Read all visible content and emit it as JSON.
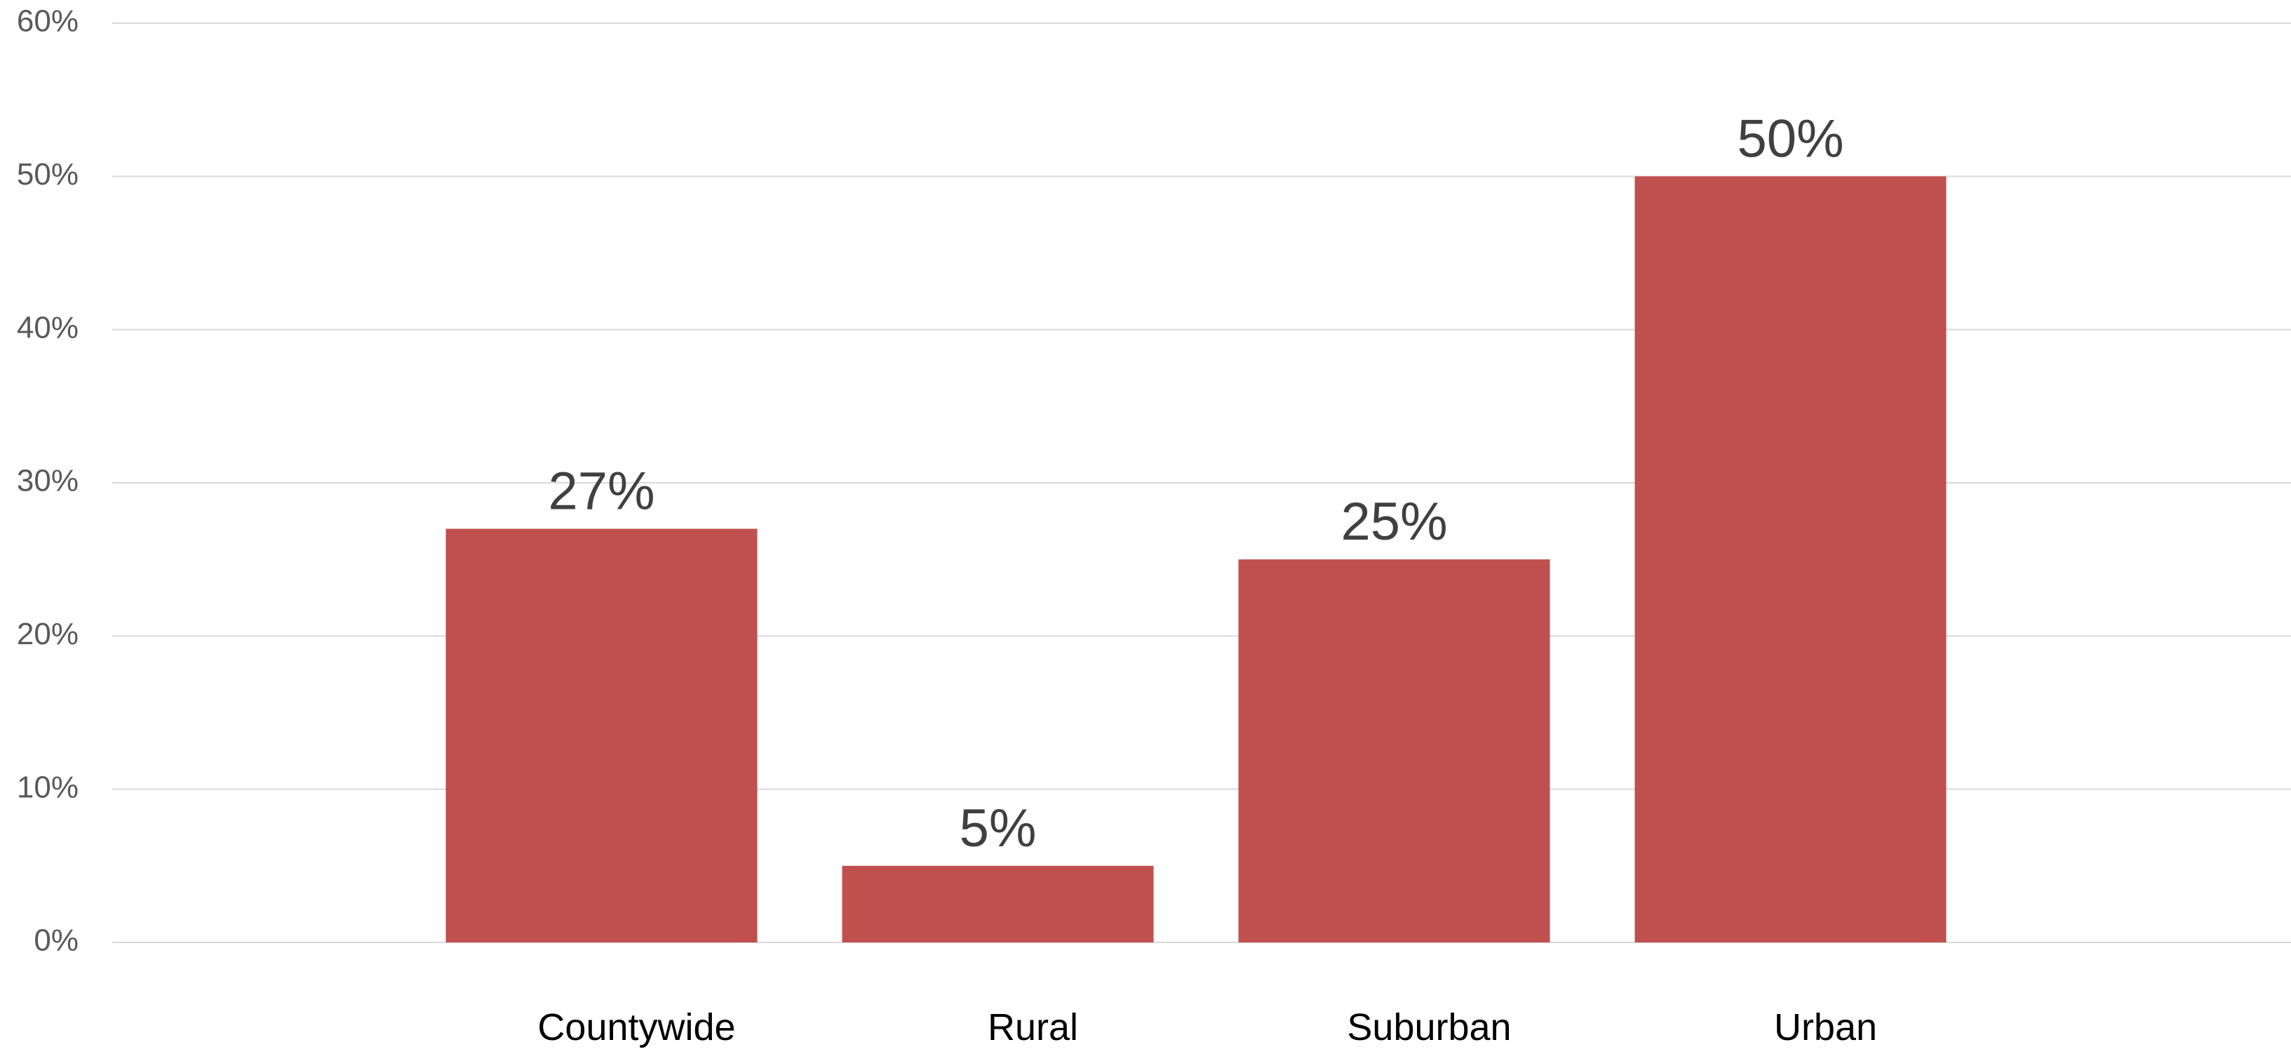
{
  "chart_data": {
    "type": "bar",
    "categories": [
      "Countywide",
      "Rural",
      "Suburban",
      "Urban"
    ],
    "values": [
      27,
      5,
      25,
      50
    ],
    "data_labels": [
      "27%",
      "5%",
      "25%",
      "50%"
    ],
    "ylim": [
      0,
      60
    ],
    "yticks": [
      0,
      10,
      20,
      30,
      40,
      50,
      60
    ],
    "ytick_labels": [
      "0%",
      "10%",
      "20%",
      "30%",
      "40%",
      "50%",
      "60%"
    ],
    "title": "",
    "xlabel": "",
    "ylabel": "",
    "grid": true,
    "legend": "none",
    "bar_color": "#c0504d"
  }
}
